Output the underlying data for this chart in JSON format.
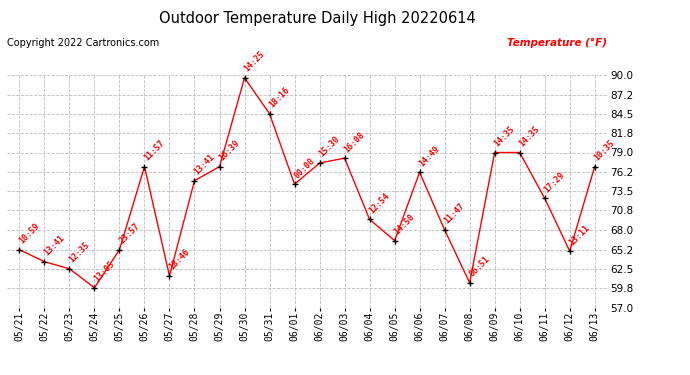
{
  "title": "Outdoor Temperature Daily High 20220614",
  "copyright": "Copyright 2022 Cartronics.com",
  "legend_label": "Temperature (°F)",
  "dates": [
    "05/21",
    "05/22",
    "05/23",
    "05/24",
    "05/25",
    "05/26",
    "05/27",
    "05/28",
    "05/29",
    "05/30",
    "05/31",
    "06/01",
    "06/02",
    "06/03",
    "06/04",
    "06/05",
    "06/06",
    "06/07",
    "06/08",
    "06/09",
    "06/10",
    "06/11",
    "06/12",
    "06/13"
  ],
  "temps": [
    65.2,
    63.5,
    62.5,
    59.8,
    65.2,
    77.0,
    61.5,
    75.0,
    77.0,
    89.6,
    84.5,
    74.5,
    77.5,
    78.2,
    69.5,
    66.5,
    76.2,
    68.0,
    60.5,
    79.0,
    79.0,
    72.5,
    65.0,
    77.0
  ],
  "time_labels": [
    "10:59",
    "13:41",
    "12:35",
    "13:05",
    "23:57",
    "11:57",
    "18:46",
    "13:41",
    "16:39",
    "14:25",
    "18:16",
    "00:00",
    "15:30",
    "16:08",
    "12:54",
    "14:50",
    "14:49",
    "11:47",
    "06:51",
    "14:35",
    "14:35",
    "17:29",
    "13:11",
    "10:35"
  ],
  "ylim": [
    57.0,
    90.0
  ],
  "yticks": [
    57.0,
    59.8,
    62.5,
    65.2,
    68.0,
    70.8,
    73.5,
    76.2,
    79.0,
    81.8,
    84.5,
    87.2,
    90.0
  ],
  "line_color": "red",
  "dot_color": "black",
  "bg_color": "#ffffff",
  "grid_color": "#bbbbbb",
  "title_color": "black",
  "copyright_color": "black",
  "legend_color": "red",
  "annotation_color": "red"
}
